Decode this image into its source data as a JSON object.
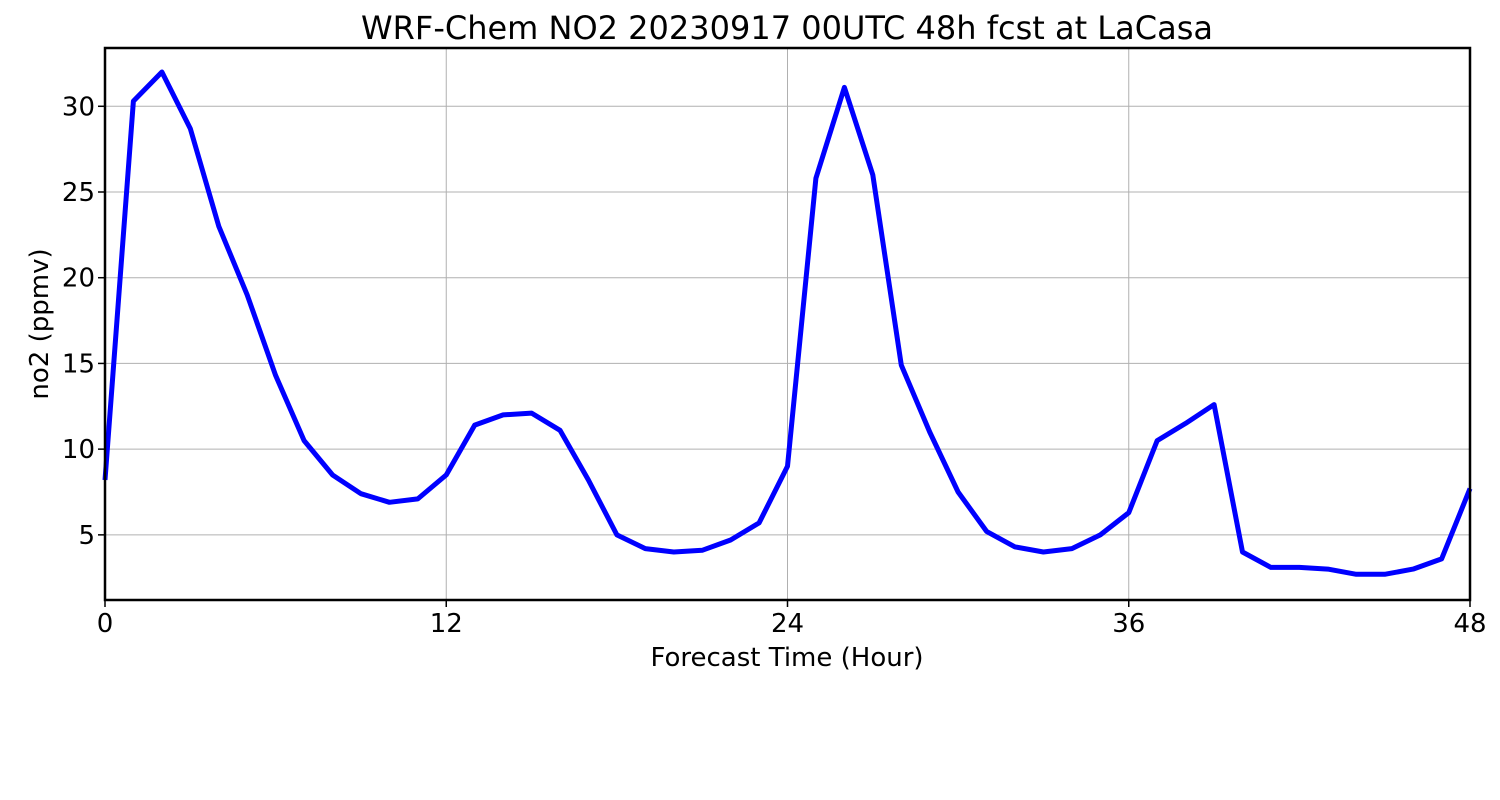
{
  "chart_data": {
    "type": "line",
    "title": "WRF-Chem NO2  20230917 00UTC 48h fcst at LaCasa",
    "xlabel": "Forecast Time (Hour)",
    "ylabel": "no2  (ppmv)",
    "xlim": [
      0,
      48
    ],
    "ylim": [
      1.2,
      33.4
    ],
    "xticks": [
      0,
      12,
      24,
      36,
      48
    ],
    "yticks": [
      5,
      10,
      15,
      20,
      25,
      30
    ],
    "grid": true,
    "series": [
      {
        "color": "#0000ff",
        "x": [
          0,
          1,
          2,
          3,
          4,
          5,
          6,
          7,
          8,
          9,
          10,
          11,
          12,
          13,
          14,
          15,
          16,
          17,
          18,
          19,
          20,
          21,
          22,
          23,
          24,
          25,
          26,
          27,
          28,
          29,
          30,
          31,
          32,
          33,
          34,
          35,
          36,
          37,
          38,
          39,
          40,
          41,
          42,
          43,
          44,
          45,
          46,
          47,
          48
        ],
        "values": [
          8.2,
          30.3,
          32.0,
          28.7,
          23.0,
          19.0,
          14.3,
          10.5,
          8.5,
          7.4,
          6.9,
          7.1,
          8.5,
          11.4,
          12.0,
          12.1,
          11.1,
          8.2,
          5.0,
          4.2,
          4.0,
          4.1,
          4.7,
          5.7,
          9.0,
          25.8,
          31.1,
          26.0,
          14.9,
          11.0,
          7.5,
          5.2,
          4.3,
          4.0,
          4.2,
          5.0,
          6.3,
          10.5,
          11.5,
          12.6,
          4.0,
          3.1,
          3.1,
          3.0,
          2.7,
          2.7,
          3.0,
          3.6,
          7.7
        ]
      }
    ]
  }
}
